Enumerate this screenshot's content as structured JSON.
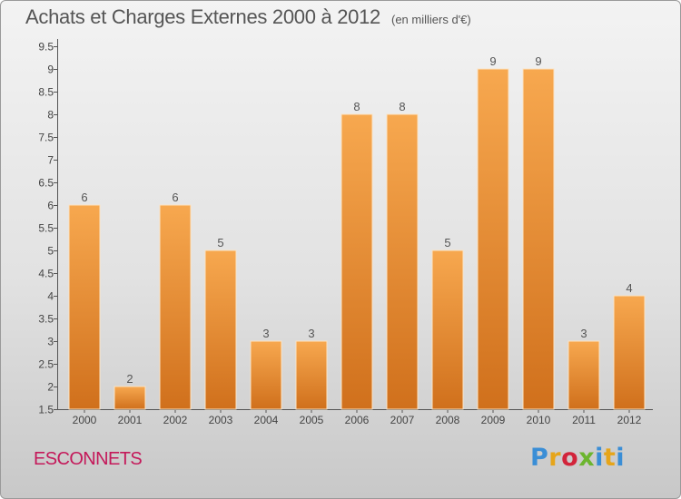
{
  "header": {
    "title": "Achats et Charges Externes 2000 à 2012",
    "subtitle": "(en milliers d'€)"
  },
  "footer": {
    "commune": "ESCONNETS",
    "logo_text": "Proxiti"
  },
  "colors": {
    "bar_top": "#f7a84f",
    "bar_bottom": "#d0701c",
    "commune_text": "#c4195a",
    "text": "#555555"
  },
  "chart_data": {
    "type": "bar",
    "title": "Achats et Charges Externes 2000 à 2012",
    "subtitle": "(en milliers d'€)",
    "xlabel": "",
    "ylabel": "",
    "categories": [
      "2000",
      "2001",
      "2002",
      "2003",
      "2004",
      "2005",
      "2006",
      "2007",
      "2008",
      "2009",
      "2010",
      "2011",
      "2012"
    ],
    "values": [
      6,
      2,
      6,
      5,
      3,
      3,
      8,
      8,
      5,
      9,
      9,
      3,
      4
    ],
    "ylim": [
      1.5,
      9.5
    ],
    "yticks": [
      "1.5",
      "2",
      "2.5",
      "3",
      "3.5",
      "4",
      "4.5",
      "5",
      "5.5",
      "6",
      "6.5",
      "7",
      "7.5",
      "8",
      "8.5",
      "9",
      "9.5"
    ],
    "grid": false,
    "legend": "none",
    "data_labels": true
  }
}
